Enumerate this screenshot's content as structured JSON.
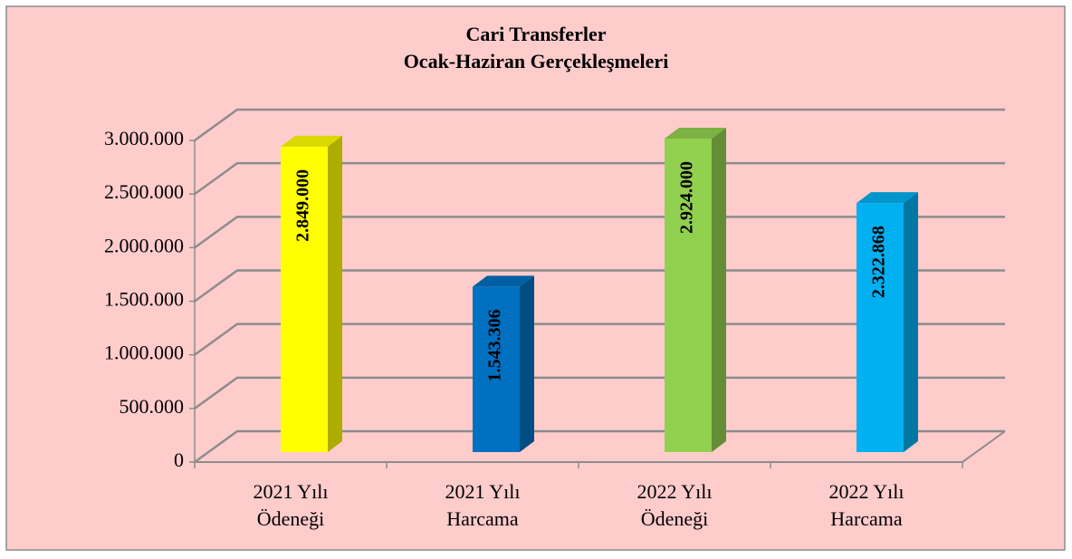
{
  "chart_data": {
    "type": "bar3d",
    "title": "Cari Transferler",
    "subtitle": "Ocak-Haziran Gerçekleşmeleri",
    "categories": [
      "2021 Yılı\nÖdeneği",
      "2021 Yılı\nHarcama",
      "2022 Yılı\nÖdeneği",
      "2022 Yılı\nHarcama"
    ],
    "values": [
      2849000,
      1543306,
      2924000,
      2322868
    ],
    "value_labels": [
      "2.849.000",
      "1.543.306",
      "2.924.000",
      "2.322.868"
    ],
    "colors": [
      "#ffff00",
      "#0070c0",
      "#92d050",
      "#00b0f0"
    ],
    "ylim": [
      0,
      3000000
    ],
    "yticks": [
      0,
      {
        "value": 500000,
        "label": "500.000"
      },
      {
        "value": 1000000,
        "label": "1.000.000"
      },
      {
        "value": 1500000,
        "label": "1.500.000"
      },
      {
        "value": 2000000,
        "label": "2.000.000"
      },
      {
        "value": 2500000,
        "label": "2.500.000"
      },
      {
        "value": 3000000,
        "label": "3.000.000"
      }
    ],
    "grid": true
  }
}
